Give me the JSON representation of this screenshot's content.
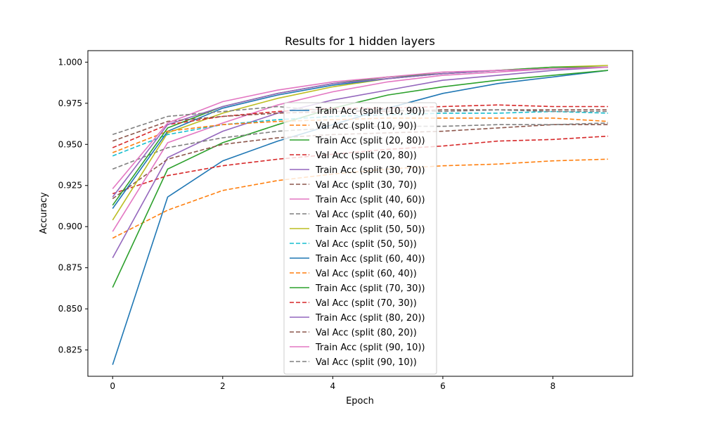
{
  "chart_data": {
    "type": "line",
    "title": "Results for 1 hidden layers",
    "xlabel": "Epoch",
    "ylabel": "Accuracy",
    "xlim": [
      -0.45,
      9.45
    ],
    "ylim": [
      0.809,
      1.007
    ],
    "xticks": [
      0,
      2,
      4,
      6,
      8
    ],
    "yticks": [
      0.825,
      0.85,
      0.875,
      0.9,
      0.925,
      0.95,
      0.975,
      1.0
    ],
    "ytick_labels": [
      "0.825",
      "0.850",
      "0.875",
      "0.900",
      "0.925",
      "0.950",
      "0.975",
      "1.000"
    ],
    "grid": false,
    "legend_position": "center",
    "x": [
      0,
      1,
      2,
      3,
      4,
      5,
      6,
      7,
      8,
      9
    ],
    "series": [
      {
        "name": "Train Acc (split (10, 90))",
        "color": "#1f77b4",
        "style": "solid",
        "values": [
          0.816,
          0.918,
          0.94,
          0.952,
          0.962,
          0.972,
          0.981,
          0.987,
          0.991,
          0.995
        ]
      },
      {
        "name": "Val Acc (split (10, 90))",
        "color": "#ff7f0e",
        "style": "dashed",
        "values": [
          0.893,
          0.91,
          0.922,
          0.928,
          0.932,
          0.935,
          0.937,
          0.938,
          0.94,
          0.941
        ]
      },
      {
        "name": "Train Acc (split (20, 80))",
        "color": "#2ca02c",
        "style": "solid",
        "values": [
          0.863,
          0.935,
          0.951,
          0.962,
          0.972,
          0.98,
          0.985,
          0.989,
          0.992,
          0.995
        ]
      },
      {
        "name": "Val Acc (split (20, 80))",
        "color": "#d62728",
        "style": "dashed",
        "values": [
          0.92,
          0.931,
          0.937,
          0.941,
          0.944,
          0.947,
          0.949,
          0.952,
          0.953,
          0.955
        ]
      },
      {
        "name": "Train Acc (split (30, 70))",
        "color": "#9467bd",
        "style": "solid",
        "values": [
          0.881,
          0.942,
          0.958,
          0.969,
          0.977,
          0.983,
          0.989,
          0.992,
          0.995,
          0.997
        ]
      },
      {
        "name": "Val Acc (split (30, 70))",
        "color": "#8c564b",
        "style": "dashed",
        "values": [
          0.917,
          0.941,
          0.95,
          0.954,
          0.956,
          0.957,
          0.958,
          0.96,
          0.962,
          0.962
        ]
      },
      {
        "name": "Train Acc (split (40, 60))",
        "color": "#e377c2",
        "style": "solid",
        "values": [
          0.897,
          0.951,
          0.963,
          0.974,
          0.982,
          0.988,
          0.992,
          0.994,
          0.996,
          0.997
        ]
      },
      {
        "name": "Val Acc (split (40, 60))",
        "color": "#7f7f7f",
        "style": "dashed",
        "values": [
          0.935,
          0.948,
          0.954,
          0.958,
          0.96,
          0.961,
          0.961,
          0.962,
          0.962,
          0.963
        ]
      },
      {
        "name": "Train Acc (split (50, 50))",
        "color": "#bcbd22",
        "style": "solid",
        "values": [
          0.904,
          0.957,
          0.969,
          0.978,
          0.985,
          0.99,
          0.993,
          0.995,
          0.997,
          0.998
        ]
      },
      {
        "name": "Val Acc (split (50, 50))",
        "color": "#17becf",
        "style": "dashed",
        "values": [
          0.943,
          0.956,
          0.962,
          0.965,
          0.967,
          0.968,
          0.969,
          0.969,
          0.97,
          0.969
        ]
      },
      {
        "name": "Train Acc (split (60, 40))",
        "color": "#1f77b4",
        "style": "solid",
        "values": [
          0.911,
          0.958,
          0.972,
          0.98,
          0.986,
          0.99,
          0.993,
          0.995,
          0.996,
          0.997
        ]
      },
      {
        "name": "Val Acc (split (60, 40))",
        "color": "#ff7f0e",
        "style": "dashed",
        "values": [
          0.945,
          0.958,
          0.962,
          0.964,
          0.965,
          0.966,
          0.966,
          0.966,
          0.966,
          0.964
        ]
      },
      {
        "name": "Train Acc (split (70, 30))",
        "color": "#2ca02c",
        "style": "solid",
        "values": [
          0.913,
          0.96,
          0.973,
          0.981,
          0.987,
          0.991,
          0.993,
          0.995,
          0.997,
          0.997
        ]
      },
      {
        "name": "Val Acc (split (70, 30))",
        "color": "#d62728",
        "style": "dashed",
        "values": [
          0.948,
          0.962,
          0.967,
          0.97,
          0.972,
          0.972,
          0.973,
          0.974,
          0.973,
          0.973
        ]
      },
      {
        "name": "Train Acc (split (80, 20))",
        "color": "#9467bd",
        "style": "solid",
        "values": [
          0.918,
          0.962,
          0.973,
          0.981,
          0.987,
          0.99,
          0.993,
          0.995,
          0.996,
          0.997
        ]
      },
      {
        "name": "Val Acc (split (80, 20))",
        "color": "#8c564b",
        "style": "dashed",
        "values": [
          0.952,
          0.964,
          0.967,
          0.969,
          0.97,
          0.97,
          0.971,
          0.971,
          0.971,
          0.971
        ]
      },
      {
        "name": "Train Acc (split (90, 10))",
        "color": "#e377c2",
        "style": "solid",
        "values": [
          0.923,
          0.963,
          0.976,
          0.983,
          0.988,
          0.991,
          0.994,
          0.995,
          0.996,
          0.997
        ]
      },
      {
        "name": "Val Acc (split (90, 10))",
        "color": "#7f7f7f",
        "style": "dashed",
        "values": [
          0.956,
          0.967,
          0.97,
          0.973,
          0.97,
          0.971,
          0.97,
          0.971,
          0.97,
          0.97
        ]
      }
    ]
  }
}
